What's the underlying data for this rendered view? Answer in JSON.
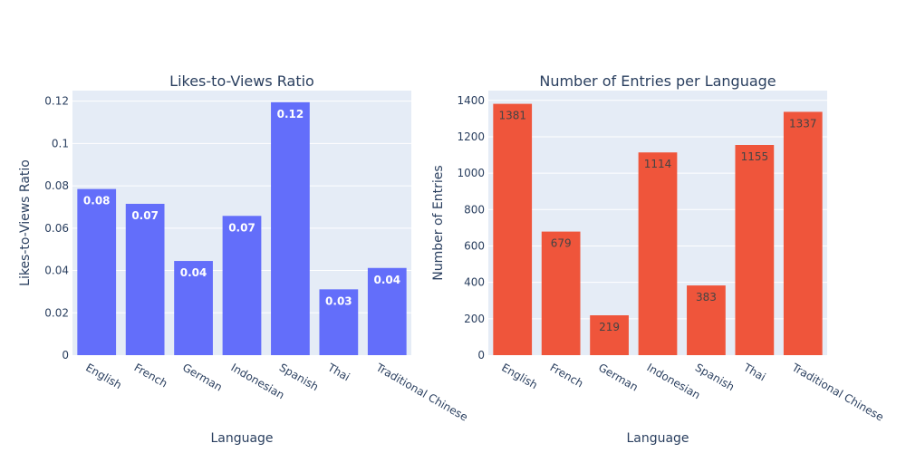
{
  "chart_data": [
    {
      "type": "bar",
      "title": "Likes-to-Views Ratio",
      "xlabel": "Language",
      "ylabel": "Likes-to-Views Ratio",
      "categories": [
        "English",
        "French",
        "German",
        "Indonesian",
        "Spanish",
        "Thai",
        "Traditional Chinese"
      ],
      "values": [
        0.0785,
        0.0715,
        0.0445,
        0.0658,
        0.1195,
        0.0311,
        0.0412
      ],
      "data_labels": [
        "0.08",
        "0.07",
        "0.04",
        "0.07",
        "0.12",
        "0.03",
        "0.04"
      ],
      "ylim": [
        0,
        0.125
      ],
      "yticks": [
        0,
        0.02,
        0.04,
        0.06,
        0.08,
        0.1,
        0.12
      ],
      "ytick_labels": [
        "0",
        "0.02",
        "0.04",
        "0.06",
        "0.08",
        "0.1",
        "0.12"
      ],
      "bar_color": "#636efa",
      "label_color": "#ffffff",
      "grid": true
    },
    {
      "type": "bar",
      "title": "Number of Entries per Language",
      "xlabel": "Language",
      "ylabel": "Number of Entries",
      "categories": [
        "English",
        "French",
        "German",
        "Indonesian",
        "Spanish",
        "Thai",
        "Traditional Chinese"
      ],
      "values": [
        1381,
        679,
        219,
        1114,
        383,
        1155,
        1337
      ],
      "data_labels": [
        "1381",
        "679",
        "219",
        "1114",
        "383",
        "1155",
        "1337"
      ],
      "ylim": [
        0,
        1453.7
      ],
      "yticks": [
        0,
        200,
        400,
        600,
        800,
        1000,
        1200,
        1400
      ],
      "ytick_labels": [
        "0",
        "200",
        "400",
        "600",
        "800",
        "1000",
        "1200",
        "1400"
      ],
      "bar_color": "#ef553b",
      "label_color": "#444444",
      "grid": true
    }
  ],
  "colors": {
    "plot_background": "#e5ecf6",
    "gridline": "#ffffff",
    "text": "#2a3f5f"
  }
}
